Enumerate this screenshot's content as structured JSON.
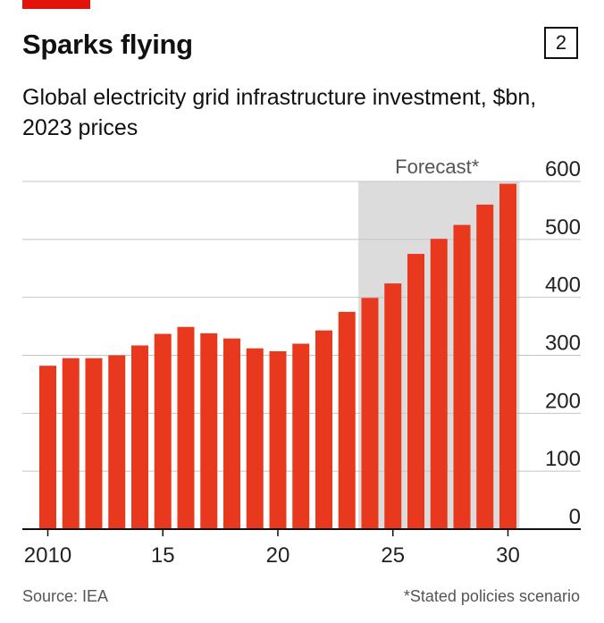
{
  "header": {
    "title": "Sparks flying",
    "badge": "2",
    "subtitle": "Global electricity grid infrastructure investment, $bn, 2023 prices"
  },
  "footer": {
    "source": "Source: IEA",
    "note": "*Stated policies scenario"
  },
  "colors": {
    "accent": "#e3120b",
    "bar": "#e8381e",
    "forecast_shade": "#dcdcdc",
    "grid": "#c4c4c4"
  },
  "chart_data": {
    "type": "bar",
    "years": [
      2010,
      2011,
      2012,
      2013,
      2014,
      2015,
      2016,
      2017,
      2018,
      2019,
      2020,
      2021,
      2022,
      2023,
      2024,
      2025,
      2026,
      2027,
      2028,
      2029,
      2030
    ],
    "values": [
      282,
      295,
      295,
      300,
      317,
      337,
      349,
      338,
      329,
      312,
      307,
      320,
      343,
      375,
      399,
      424,
      475,
      501,
      525,
      560,
      596
    ],
    "xticks": [
      {
        "year": 2010,
        "label": "2010"
      },
      {
        "year": 2015,
        "label": "15"
      },
      {
        "year": 2020,
        "label": "20"
      },
      {
        "year": 2025,
        "label": "25"
      },
      {
        "year": 2030,
        "label": "30"
      }
    ],
    "yticks": [
      0,
      100,
      200,
      300,
      400,
      500,
      600
    ],
    "ylim": [
      0,
      600
    ],
    "forecast": {
      "start": 2024,
      "end": 2030,
      "label": "Forecast*"
    },
    "grid": true,
    "axis_side": "right"
  }
}
